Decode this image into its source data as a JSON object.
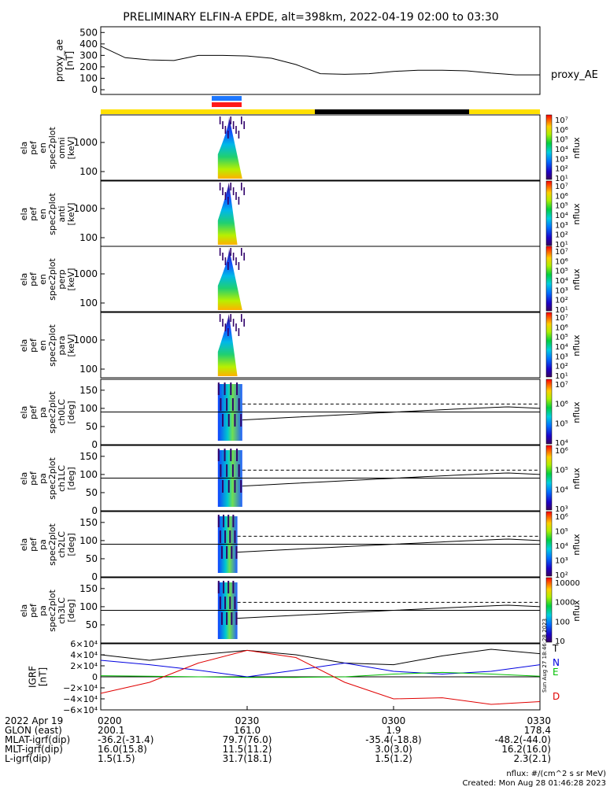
{
  "title": "PRELIMINARY ELFIN-A EPDE, alt=398km, 2022-04-19 02:00 to 03:30",
  "colors": {
    "bar_yellow": "#ffe000",
    "bar_black": "#000000",
    "marker_blue": "#1e78ff",
    "marker_red": "#ff1a1a",
    "series_black": "#000000",
    "series_blue": "#0000e0",
    "series_green": "#00c000",
    "series_red": "#e00000"
  },
  "panels": {
    "ae": {
      "ylabel_lines": [
        "proxy_ae",
        "[nT]"
      ],
      "legend": "proxy_AE",
      "yticks": [
        "500",
        "400",
        "300",
        "200",
        "100",
        "0"
      ]
    },
    "en_omni": {
      "ylabel_lines": [
        "ela",
        "pef",
        "en",
        "spec2plot",
        "omni",
        "[keV]"
      ],
      "yticks": [
        "1000",
        "100"
      ],
      "cbar_ticks": [
        "10⁷",
        "10⁶",
        "10⁵",
        "10⁴",
        "10³",
        "10²",
        "10¹"
      ],
      "cbar_label": "nflux"
    },
    "en_anti": {
      "ylabel_lines": [
        "ela",
        "pef",
        "en",
        "spec2plot",
        "anti",
        "[keV]"
      ],
      "yticks": [
        "1000",
        "100"
      ],
      "cbar_ticks": [
        "10⁷",
        "10⁶",
        "10⁵",
        "10⁴",
        "10³",
        "10²",
        "10¹"
      ],
      "cbar_label": "nflux"
    },
    "en_perp": {
      "ylabel_lines": [
        "ela",
        "pef",
        "en",
        "spec2plot",
        "perp",
        "[keV]"
      ],
      "yticks": [
        "1000",
        "100"
      ],
      "cbar_ticks": [
        "10⁷",
        "10⁶",
        "10⁵",
        "10⁴",
        "10³",
        "10²",
        "10¹"
      ],
      "cbar_label": "nflux"
    },
    "en_para": {
      "ylabel_lines": [
        "ela",
        "pef",
        "en",
        "spec2plot",
        "para",
        "[keV]"
      ],
      "yticks": [
        "1000",
        "100"
      ],
      "cbar_ticks": [
        "10⁷",
        "10⁶",
        "10⁵",
        "10⁴",
        "10³",
        "10²",
        "10¹"
      ],
      "cbar_label": "nflux"
    },
    "pa_ch0": {
      "ylabel_lines": [
        "ela",
        "pef",
        "pa",
        "spec2plot",
        "ch0LC",
        "[deg]"
      ],
      "yticks": [
        "150",
        "100",
        "50",
        "0"
      ],
      "cbar_ticks": [
        "10⁷",
        "10⁶",
        "10⁵",
        "10⁴"
      ],
      "cbar_label": "nflux"
    },
    "pa_ch1": {
      "ylabel_lines": [
        "ela",
        "pef",
        "pa",
        "spec2plot",
        "ch1LC",
        "[deg]"
      ],
      "yticks": [
        "150",
        "100",
        "50",
        "0"
      ],
      "cbar_ticks": [
        "10⁶",
        "10⁵",
        "10⁴",
        "10³"
      ],
      "cbar_label": "nflux"
    },
    "pa_ch2": {
      "ylabel_lines": [
        "ela",
        "pef",
        "pa",
        "spec2plot",
        "ch2LC",
        "[deg]"
      ],
      "yticks": [
        "150",
        "100",
        "50",
        "0"
      ],
      "cbar_ticks": [
        "10⁶",
        "10⁵",
        "10⁴",
        "10³",
        "10²"
      ],
      "cbar_label": "nflux"
    },
    "pa_ch3": {
      "ylabel_lines": [
        "ela",
        "pef",
        "pa",
        "spec2plot",
        "ch3LC",
        "[deg]"
      ],
      "yticks": [
        "150",
        "100",
        "50"
      ],
      "cbar_ticks": [
        "10000",
        "1000",
        "100",
        "10"
      ],
      "cbar_label": "nflux"
    },
    "igrf": {
      "ylabel_lines": [
        "IGRF",
        "[nT]"
      ],
      "yticks": [
        "6×10⁴",
        "4×10⁴",
        "2×10⁴",
        "0",
        "−2×10⁴",
        "−4×10⁴",
        "−6×10⁴"
      ],
      "legend": [
        "T",
        "N",
        "E",
        "D"
      ]
    }
  },
  "x_axis": {
    "row_labels": [
      "2022 Apr 19",
      "GLON (east)",
      "MLAT-igrf(dip)",
      "MLT-igrf(dip)",
      "L-igrf(dip)"
    ],
    "columns": [
      {
        "time": "0200",
        "glon": "200.1",
        "mlat": "-36.2(-31.4)",
        "mlt": "16.0(15.8)",
        "l": "1.5(1.5)"
      },
      {
        "time": "0230",
        "glon": "161.0",
        "mlat": "79.7(76.0)",
        "mlt": "11.5(11.2)",
        "l": "31.7(18.1)"
      },
      {
        "time": "0300",
        "glon": "1.9",
        "mlat": "-35.4(-18.8)",
        "mlt": "3.0(3.0)",
        "l": "1.5(1.2)"
      },
      {
        "time": "0330",
        "glon": "178.4",
        "mlat": "-48.2(-44.0)",
        "mlt": "16.2(16.0)",
        "l": "2.3(2.1)"
      }
    ]
  },
  "side_stamp": "Sun Aug 27 18:46:28 2023",
  "footer": {
    "units": "nflux: #/(cm^2 s sr MeV)",
    "created": "Created: Mon Aug 28 01:46:28 2023"
  },
  "chart_data": [
    {
      "type": "line",
      "title": "",
      "xlabel": "",
      "ylabel": "proxy_ae [nT]",
      "ylim": [
        0,
        550
      ],
      "x": [
        "02:00",
        "02:05",
        "02:10",
        "02:15",
        "02:20",
        "02:25",
        "02:30",
        "02:35",
        "02:40",
        "02:45",
        "02:50",
        "02:55",
        "03:00",
        "03:05",
        "03:10",
        "03:15",
        "03:20",
        "03:25",
        "03:30"
      ],
      "series": [
        {
          "name": "proxy_AE",
          "values": [
            380,
            280,
            260,
            255,
            300,
            300,
            295,
            275,
            220,
            140,
            135,
            140,
            160,
            170,
            170,
            165,
            145,
            130,
            130
          ]
        }
      ]
    },
    {
      "type": "heatmap",
      "title": "",
      "ylabel": "ela pef en spec2plot omni [keV]",
      "time_range": [
        "02:24",
        "02:29"
      ]
    },
    {
      "type": "heatmap",
      "title": "",
      "ylabel": "ela pef en spec2plot anti [keV]",
      "time_range": [
        "02:24",
        "02:28"
      ]
    },
    {
      "type": "heatmap",
      "title": "",
      "ylabel": "ela pef en spec2plot perp [keV]",
      "time_range": [
        "02:24",
        "02:29"
      ]
    },
    {
      "type": "heatmap",
      "title": "",
      "ylabel": "ela pef en spec2plot para [keV]",
      "time_range": [
        "02:24",
        "02:28"
      ]
    },
    {
      "type": "heatmap",
      "title": "",
      "ylabel": "ela pef pa spec2plot ch0LC [deg]",
      "ylim": [
        0,
        180
      ],
      "time_range": [
        "02:24",
        "02:29"
      ]
    },
    {
      "type": "heatmap",
      "title": "",
      "ylabel": "ela pef pa spec2plot ch1LC [deg]",
      "ylim": [
        0,
        180
      ],
      "time_range": [
        "02:24",
        "02:29"
      ]
    },
    {
      "type": "heatmap",
      "title": "",
      "ylabel": "ela pef pa spec2plot ch2LC [deg]",
      "ylim": [
        0,
        180
      ],
      "time_range": [
        "02:24",
        "02:28"
      ]
    },
    {
      "type": "heatmap",
      "title": "",
      "ylabel": "ela pef pa spec2plot ch3LC [deg]",
      "ylim": [
        0,
        180
      ],
      "time_range": [
        "02:24",
        "02:28"
      ]
    },
    {
      "type": "line",
      "title": "",
      "ylabel": "IGRF [nT]",
      "ylim": [
        -60000,
        60000
      ],
      "x": [
        "02:00",
        "02:10",
        "02:20",
        "02:30",
        "02:40",
        "02:50",
        "03:00",
        "03:10",
        "03:20",
        "03:30"
      ],
      "series": [
        {
          "name": "T",
          "values": [
            40000,
            30000,
            40000,
            48000,
            40000,
            25000,
            22000,
            38000,
            50000,
            42000
          ]
        },
        {
          "name": "N",
          "values": [
            30000,
            22000,
            12000,
            0,
            12000,
            25000,
            10000,
            5000,
            10000,
            22000
          ]
        },
        {
          "name": "E",
          "values": [
            2000,
            1000,
            0,
            -1000,
            -1000,
            0,
            5000,
            8000,
            5000,
            1000
          ]
        },
        {
          "name": "D",
          "values": [
            -30000,
            -10000,
            25000,
            48000,
            35000,
            -10000,
            -40000,
            -38000,
            -50000,
            -45000
          ]
        }
      ]
    }
  ]
}
